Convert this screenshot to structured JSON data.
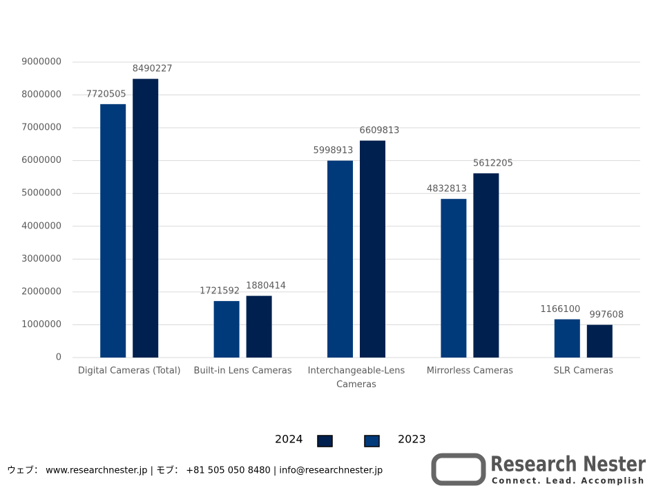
{
  "chart_data": {
    "type": "bar",
    "categories": [
      "Digital Cameras (Total)",
      "Built-in Lens Cameras",
      "Interchangeable-Lens Cameras",
      "Mirrorless Cameras",
      "SLR Cameras"
    ],
    "series": [
      {
        "name": "2023",
        "color": "#003a7a",
        "values": [
          7720505,
          1721592,
          5998913,
          4832813,
          1166100
        ]
      },
      {
        "name": "2024",
        "color": "#00214f",
        "values": [
          8490227,
          1880414,
          6609813,
          5612205,
          997608
        ]
      }
    ],
    "ylim": [
      0,
      9000000
    ],
    "yticks": [
      0,
      1000000,
      2000000,
      3000000,
      4000000,
      5000000,
      6000000,
      7000000,
      8000000,
      9000000
    ],
    "grid": true
  },
  "footer": {
    "contact": "ウェブ： www.researchnester.jp | モブ： +81 505 050 8480 | info@researchnester.jp"
  },
  "logo": {
    "name": "Research Nester",
    "tagline": "Connect. Lead. Accomplish"
  }
}
